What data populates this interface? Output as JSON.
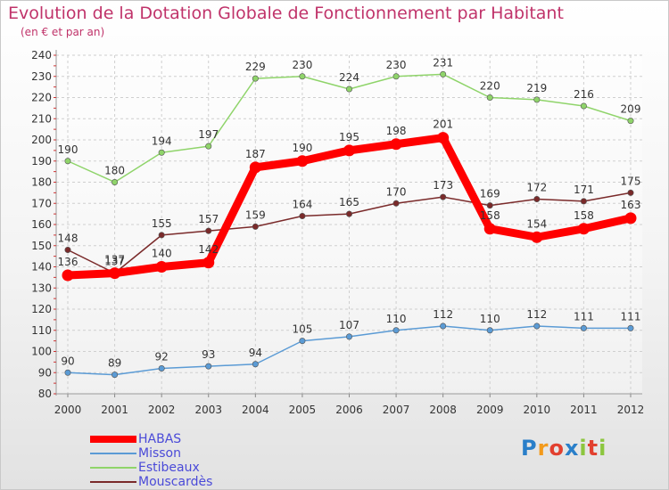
{
  "header": {
    "title": "Evolution de la Dotation Globale de Fonctionnement par Habitant",
    "subtitle": "(en € et par an)"
  },
  "logo": {
    "text": "Proxiti",
    "letters": [
      "P",
      "r",
      "o",
      "x",
      "i",
      "t",
      "i"
    ]
  },
  "chart_data": {
    "type": "line",
    "title": "Evolution de la Dotation Globale de Fonctionnement par Habitant",
    "subtitle": "(en € et par an)",
    "x": [
      "2000",
      "2001",
      "2002",
      "2003",
      "2004",
      "2005",
      "2006",
      "2007",
      "2008",
      "2009",
      "2010",
      "2011",
      "2012"
    ],
    "ylim": [
      80,
      240
    ],
    "yticks": [
      "80",
      "90",
      "100",
      "110",
      "120",
      "130",
      "140",
      "150",
      "160",
      "170",
      "180",
      "190",
      "200",
      "210",
      "220",
      "230",
      "240"
    ],
    "grid": true,
    "legend_position": "bottom-left",
    "series": [
      {
        "name": "HABAS",
        "color": "#ff0000",
        "emphasis": true,
        "values": [
          136,
          137,
          140,
          142,
          187,
          190,
          195,
          198,
          201,
          158,
          154,
          158,
          163
        ]
      },
      {
        "name": "Misson",
        "color": "#5b9bd5",
        "emphasis": false,
        "values": [
          90,
          89,
          92,
          93,
          94,
          105,
          107,
          110,
          112,
          110,
          112,
          111,
          111
        ]
      },
      {
        "name": "Estibeaux",
        "color": "#8fd46a",
        "emphasis": false,
        "values": [
          190,
          180,
          194,
          197,
          229,
          230,
          224,
          230,
          231,
          220,
          219,
          216,
          209
        ]
      },
      {
        "name": "Mouscardès",
        "color": "#7a2a2a",
        "emphasis": false,
        "values": [
          148,
          137,
          155,
          157,
          159,
          164,
          165,
          170,
          173,
          169,
          172,
          171,
          175
        ]
      }
    ]
  },
  "legend": {
    "items": [
      {
        "label": "HABAS"
      },
      {
        "label": "Misson"
      },
      {
        "label": "Estibeaux"
      },
      {
        "label": "Mouscardès"
      }
    ]
  }
}
